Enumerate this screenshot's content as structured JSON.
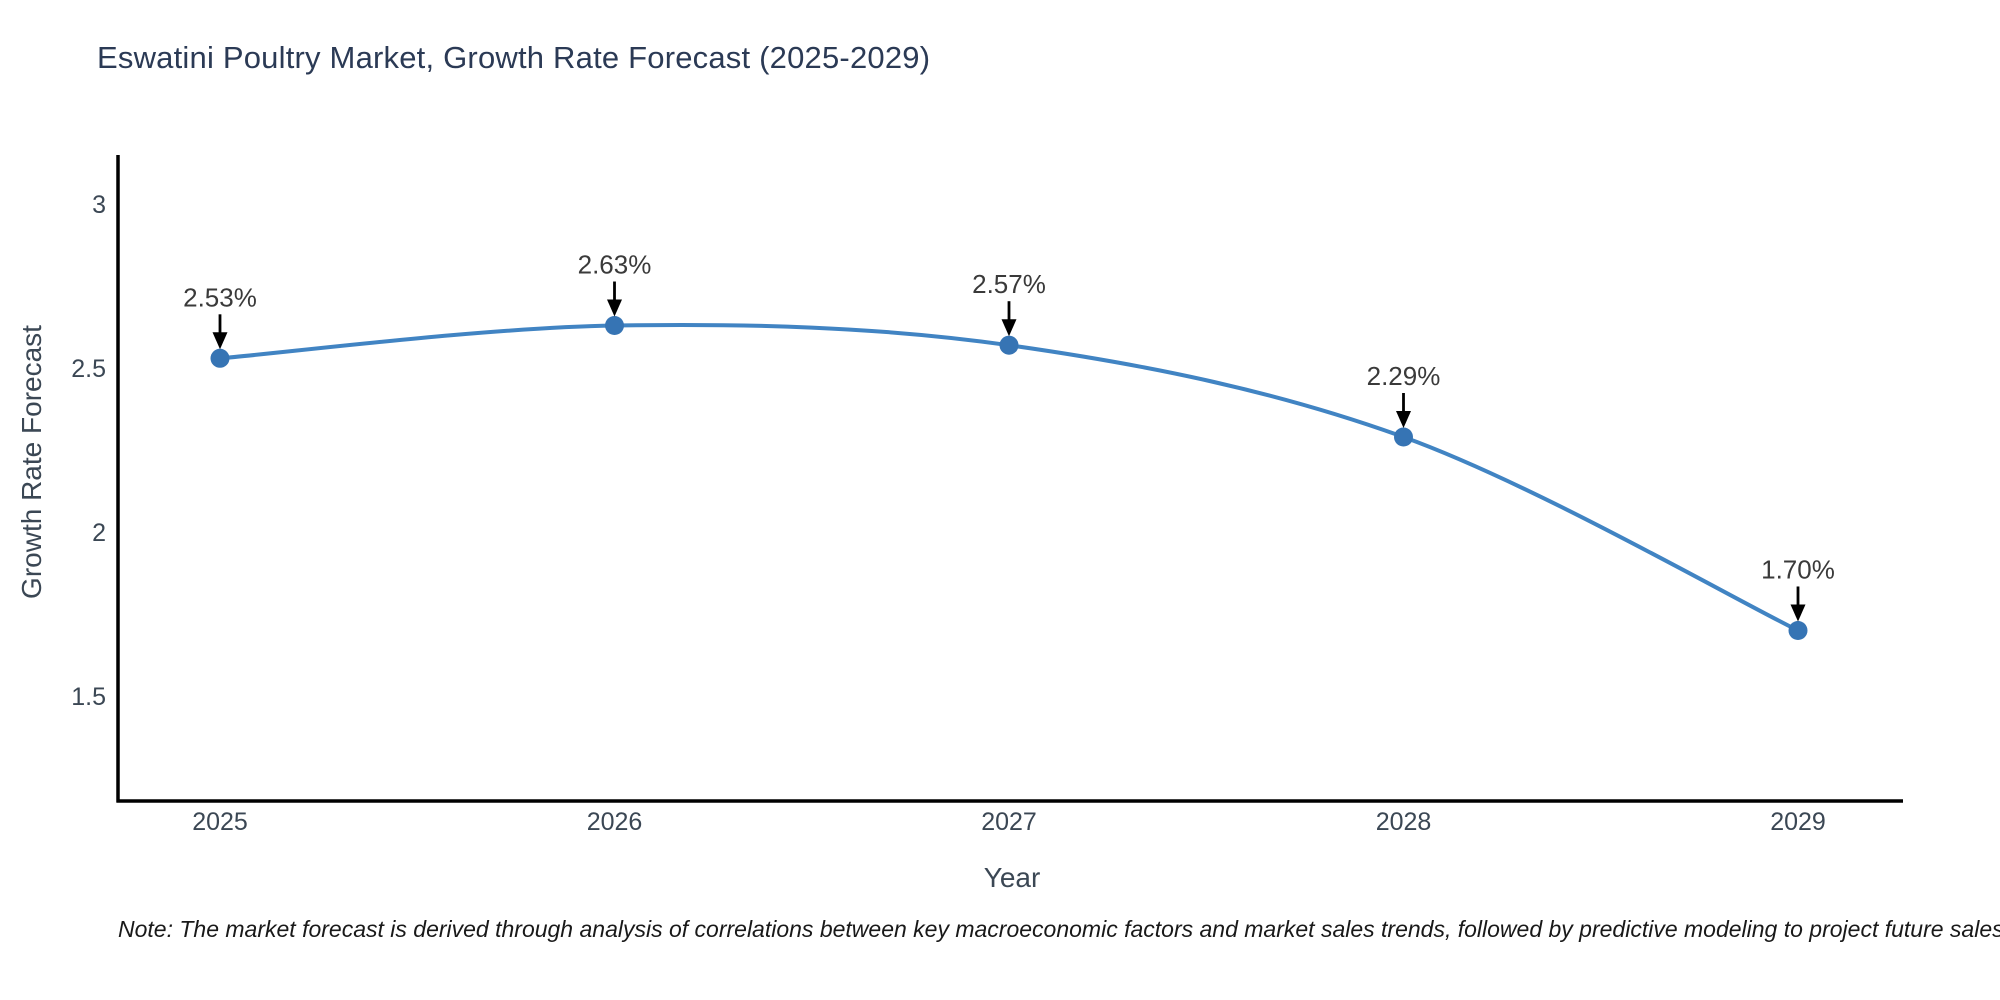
{
  "title": "Eswatini Poultry Market, Growth Rate Forecast (2025-2029)",
  "note": "Note: The market forecast is derived through analysis of correlations between key macroeconomic factors and market sales trends, followed by predictive modeling to project future sales",
  "colors": {
    "background": "#ffffff",
    "title": "#2b3a55",
    "axis": "#000000",
    "tick_label": "#3b4754",
    "axis_label": "#3b4754",
    "line": "#4184c3",
    "marker": "#3674b4",
    "annotation_text": "#3a3a3a",
    "annotation_arrow": "#000000",
    "note": "#191919"
  },
  "chart_data": {
    "type": "line",
    "title": "Eswatini Poultry Market, Growth Rate Forecast (2025-2029)",
    "xlabel": "Year",
    "ylabel": "Growth Rate Forecast",
    "x": [
      2025,
      2026,
      2027,
      2028,
      2029
    ],
    "xticklabels": [
      "2025",
      "2026",
      "2027",
      "2028",
      "2029"
    ],
    "yticks": [
      3,
      2.5,
      2,
      1.5
    ],
    "yticklabels": [
      "3",
      "2.5",
      "2",
      "1.5"
    ],
    "ylim": [
      1.18,
      3.15
    ],
    "series": [
      {
        "name": "Growth Rate Forecast",
        "values": [
          2.53,
          2.63,
          2.57,
          2.29,
          1.7
        ]
      }
    ],
    "point_labels": [
      "2.53%",
      "2.63%",
      "2.57%",
      "2.29%",
      "1.70%"
    ],
    "curve": "spline",
    "markers": true,
    "grid": false,
    "legend": "none",
    "annotations": "value label with downward arrow above each data point"
  }
}
